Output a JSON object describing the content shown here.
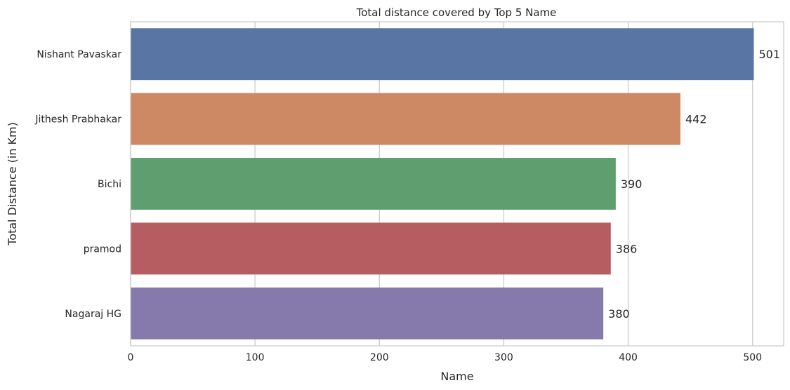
{
  "chart_data": {
    "type": "bar",
    "orientation": "horizontal",
    "title": "Total distance covered by Top 5 Name",
    "xlabel": "Name",
    "ylabel": "Total Distance (in Km)",
    "categories": [
      "Nishant Pavaskar",
      "Jithesh Prabhakar ",
      "Bichi",
      "pramod ",
      "Nagaraj HG"
    ],
    "values": [
      501,
      442,
      390,
      386,
      380
    ],
    "data_labels": [
      "501",
      "442",
      "390",
      "386",
      "380"
    ],
    "xlim": [
      0,
      525
    ],
    "xticks": [
      0,
      100,
      200,
      300,
      400,
      500
    ],
    "xtick_labels": [
      "0",
      "100",
      "200",
      "300",
      "400",
      "500"
    ],
    "grid": "vertical",
    "legend": "none",
    "colors": [
      "#5875a4",
      "#cc8963",
      "#5f9e6e",
      "#b55d60",
      "#857aab"
    ]
  }
}
